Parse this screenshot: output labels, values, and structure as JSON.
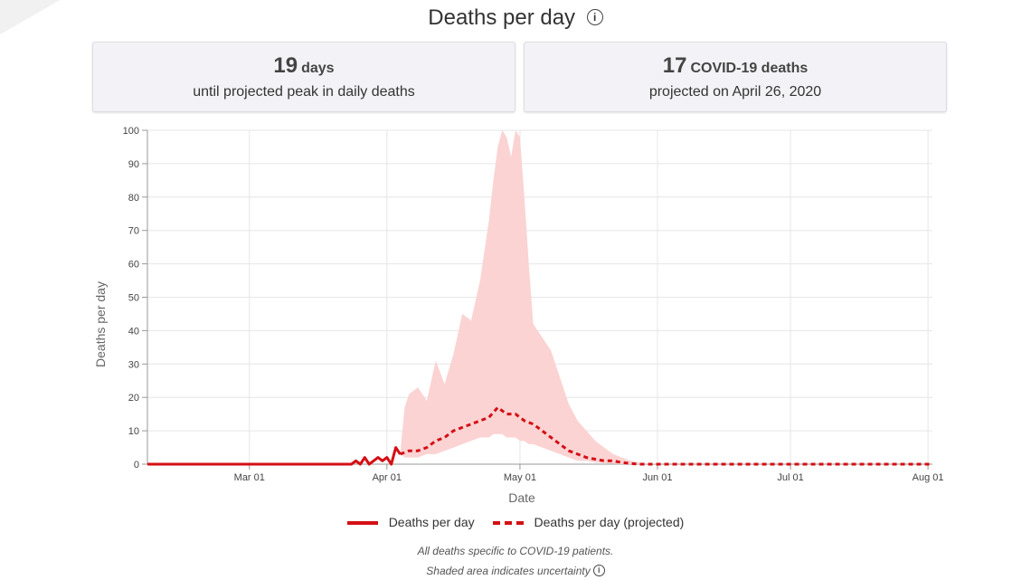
{
  "title": "Deaths per day",
  "stats": {
    "peak": {
      "number": "19",
      "unit": "days",
      "caption": "until projected peak in daily deaths"
    },
    "projected": {
      "number": "17",
      "unit": "COVID-19 deaths",
      "caption": "projected on April 26, 2020"
    }
  },
  "chart_data": {
    "type": "line",
    "xlabel": "Date",
    "ylabel": "Deaths per day",
    "ylim": [
      0,
      100
    ],
    "yticks": [
      0,
      10,
      20,
      30,
      40,
      50,
      60,
      70,
      80,
      90,
      100
    ],
    "xlim": [
      "2020-02-07",
      "2020-08-02"
    ],
    "xticks": [
      {
        "date": "2020-03-01",
        "label": "Mar 01"
      },
      {
        "date": "2020-04-01",
        "label": "Apr 01"
      },
      {
        "date": "2020-05-01",
        "label": "May 01"
      },
      {
        "date": "2020-06-01",
        "label": "Jun 01"
      },
      {
        "date": "2020-07-01",
        "label": "Jul 01"
      },
      {
        "date": "2020-08-01",
        "label": "Aug 01"
      }
    ],
    "grid": true,
    "legend_position": "bottom",
    "series": [
      {
        "name": "Deaths per day",
        "style": "solid",
        "color": "#d40f14",
        "points": [
          [
            "2020-02-07",
            0
          ],
          [
            "2020-03-24",
            0
          ],
          [
            "2020-03-25",
            1
          ],
          [
            "2020-03-26",
            0
          ],
          [
            "2020-03-27",
            2
          ],
          [
            "2020-03-28",
            0
          ],
          [
            "2020-03-29",
            1
          ],
          [
            "2020-03-30",
            2
          ],
          [
            "2020-03-31",
            1
          ],
          [
            "2020-04-01",
            2
          ],
          [
            "2020-04-02",
            0
          ],
          [
            "2020-04-03",
            5
          ],
          [
            "2020-04-04",
            3
          ]
        ]
      },
      {
        "name": "Deaths per day (projected)",
        "style": "dashed",
        "color": "#d40f14",
        "points": [
          [
            "2020-04-04",
            3
          ],
          [
            "2020-04-06",
            4
          ],
          [
            "2020-04-08",
            4
          ],
          [
            "2020-04-10",
            5
          ],
          [
            "2020-04-12",
            7
          ],
          [
            "2020-04-14",
            8
          ],
          [
            "2020-04-16",
            10
          ],
          [
            "2020-04-18",
            11
          ],
          [
            "2020-04-20",
            12
          ],
          [
            "2020-04-22",
            13
          ],
          [
            "2020-04-24",
            14
          ],
          [
            "2020-04-26",
            17
          ],
          [
            "2020-04-28",
            15
          ],
          [
            "2020-04-30",
            15
          ],
          [
            "2020-05-02",
            13
          ],
          [
            "2020-05-04",
            12
          ],
          [
            "2020-05-06",
            10
          ],
          [
            "2020-05-08",
            8
          ],
          [
            "2020-05-10",
            6
          ],
          [
            "2020-05-12",
            4
          ],
          [
            "2020-05-14",
            3
          ],
          [
            "2020-05-16",
            2
          ],
          [
            "2020-05-18",
            1.5
          ],
          [
            "2020-05-20",
            1
          ],
          [
            "2020-05-22",
            1
          ],
          [
            "2020-05-24",
            0.5
          ],
          [
            "2020-05-26",
            0.2
          ],
          [
            "2020-05-28",
            0
          ],
          [
            "2020-06-15",
            0
          ],
          [
            "2020-07-10",
            0
          ],
          [
            "2020-08-02",
            0
          ]
        ]
      }
    ],
    "uncertainty_band": {
      "color": "#fbd3d3",
      "points": [
        [
          "2020-04-04",
          3,
          3
        ],
        [
          "2020-04-05",
          2,
          17
        ],
        [
          "2020-04-06",
          2,
          21
        ],
        [
          "2020-04-08",
          2,
          23
        ],
        [
          "2020-04-10",
          3,
          19
        ],
        [
          "2020-04-12",
          3,
          31
        ],
        [
          "2020-04-14",
          4,
          24
        ],
        [
          "2020-04-16",
          5,
          33
        ],
        [
          "2020-04-18",
          6,
          45
        ],
        [
          "2020-04-20",
          7,
          43
        ],
        [
          "2020-04-22",
          8,
          55
        ],
        [
          "2020-04-24",
          8,
          73
        ],
        [
          "2020-04-25",
          9,
          85
        ],
        [
          "2020-04-26",
          9,
          95
        ],
        [
          "2020-04-27",
          9,
          100
        ],
        [
          "2020-04-28",
          8,
          98
        ],
        [
          "2020-04-29",
          8,
          92
        ],
        [
          "2020-04-30",
          8,
          100
        ],
        [
          "2020-05-01",
          7,
          98
        ],
        [
          "2020-05-02",
          7,
          80
        ],
        [
          "2020-05-03",
          6,
          60
        ],
        [
          "2020-05-04",
          6,
          42
        ],
        [
          "2020-05-06",
          5,
          38
        ],
        [
          "2020-05-08",
          4,
          34
        ],
        [
          "2020-05-10",
          3,
          26
        ],
        [
          "2020-05-12",
          2,
          18
        ],
        [
          "2020-05-14",
          1,
          13
        ],
        [
          "2020-05-16",
          1,
          10
        ],
        [
          "2020-05-18",
          0.5,
          7
        ],
        [
          "2020-05-20",
          0.3,
          5
        ],
        [
          "2020-05-22",
          0.1,
          3
        ],
        [
          "2020-05-24",
          0,
          2
        ],
        [
          "2020-05-26",
          0,
          1
        ],
        [
          "2020-05-28",
          0,
          0.5
        ],
        [
          "2020-06-01",
          0,
          0
        ]
      ]
    }
  },
  "legend": {
    "actual_label": "Deaths per day",
    "projected_label": "Deaths per day (projected)"
  },
  "footnotes": {
    "line1": "All deaths specific to COVID-19 patients.",
    "line2": "Shaded area indicates uncertainty"
  },
  "icons": {
    "title_info": "info-icon",
    "footnote_info": "info-icon"
  }
}
